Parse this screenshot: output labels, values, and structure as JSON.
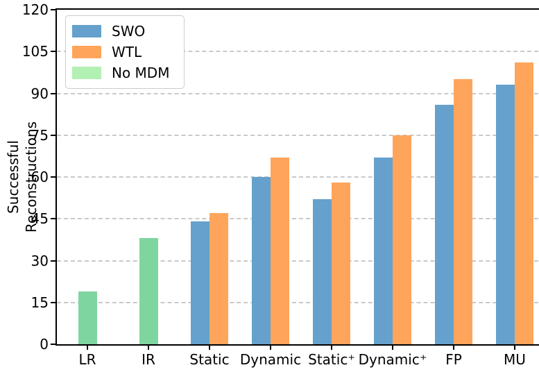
{
  "chart_data": {
    "type": "bar",
    "title": "",
    "xlabel": "",
    "ylabel": "Successful Reconstructions",
    "ylim": [
      0,
      120
    ],
    "yticks": [
      0,
      15,
      30,
      45,
      60,
      75,
      90,
      105,
      120
    ],
    "grid": "horizontal-dashed",
    "legend_position": "upper-left",
    "categories": [
      "LR",
      "IR",
      "Static",
      "Dynamic",
      "Static⁺",
      "Dynamic⁺",
      "FP",
      "MU"
    ],
    "series": [
      {
        "name": "SWO",
        "color": "#65A1CC",
        "values": [
          null,
          null,
          44,
          60,
          52,
          67,
          86,
          93
        ]
      },
      {
        "name": "WTL",
        "color": "#FEA55B",
        "values": [
          null,
          null,
          47,
          67,
          58,
          75,
          95,
          101
        ]
      },
      {
        "name": "No MDM",
        "color": "#7FD5A0",
        "legend_color": "#B3F0B4",
        "values": [
          19,
          38,
          null,
          null,
          null,
          null,
          null,
          null
        ]
      }
    ]
  },
  "colors": {
    "background": "#ffffff",
    "axis": "#000000",
    "text": "#000000",
    "gridline": "#c9c9c9",
    "legend_border": "#cccccc"
  }
}
